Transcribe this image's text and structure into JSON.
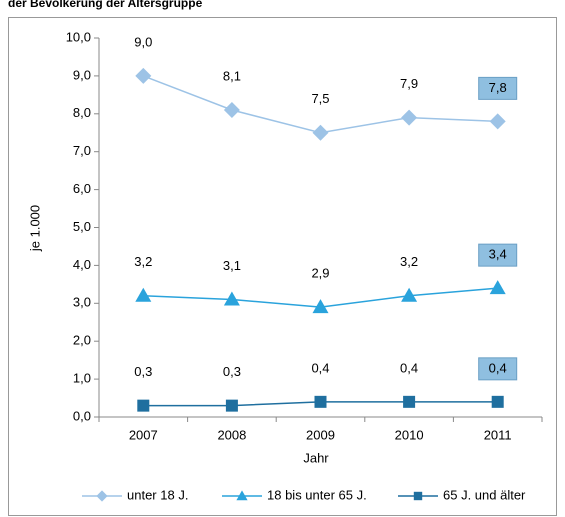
{
  "chart_data": {
    "type": "line",
    "title": "der Bevölkerung der Altersgruppe",
    "x_label": "Jahr",
    "y_label": "je 1.000",
    "categories": [
      "2007",
      "2008",
      "2009",
      "2010",
      "2011"
    ],
    "ylim": [
      0,
      10
    ],
    "yticks": [
      {
        "value": 0,
        "label": "0,0"
      },
      {
        "value": 1,
        "label": "1,0"
      },
      {
        "value": 2,
        "label": "2,0"
      },
      {
        "value": 3,
        "label": "3,0"
      },
      {
        "value": 4,
        "label": "4,0"
      },
      {
        "value": 5,
        "label": "5,0"
      },
      {
        "value": 6,
        "label": "6,0"
      },
      {
        "value": 7,
        "label": "7,0"
      },
      {
        "value": 8,
        "label": "8,0"
      },
      {
        "value": 9,
        "label": "9,0"
      },
      {
        "value": 10,
        "label": "10,0"
      }
    ],
    "grid": false,
    "legend": "bottom",
    "series": [
      {
        "name": "unter 18 J.",
        "color": "#9dc3e6",
        "marker": "diamond",
        "values": [
          9.0,
          8.1,
          7.5,
          7.9,
          7.8
        ],
        "value_labels": [
          "9,0",
          "8,1",
          "7,5",
          "7,9",
          "7,8"
        ]
      },
      {
        "name": "18 bis unter 65 J.",
        "color": "#2aa3dc",
        "marker": "triangle",
        "values": [
          3.2,
          3.1,
          2.9,
          3.2,
          3.4
        ],
        "value_labels": [
          "3,2",
          "3,1",
          "2,9",
          "3,2",
          "3,4"
        ]
      },
      {
        "name": "65 J. und älter",
        "color": "#1f6f9f",
        "marker": "square",
        "values": [
          0.3,
          0.3,
          0.4,
          0.4,
          0.4
        ],
        "value_labels": [
          "0,3",
          "0,3",
          "0,4",
          "0,4",
          "0,4"
        ]
      }
    ]
  }
}
